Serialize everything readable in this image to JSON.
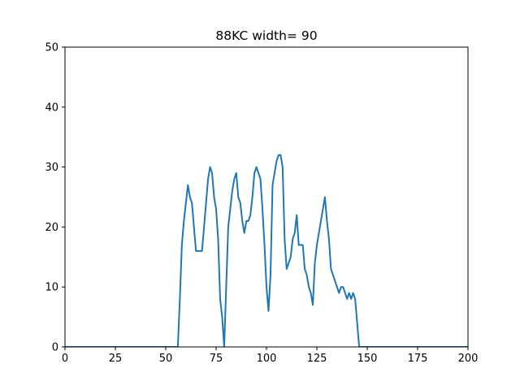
{
  "chart_data": {
    "type": "line",
    "title": "88KC width= 90",
    "xlabel": "",
    "ylabel": "",
    "xlim": [
      0,
      200
    ],
    "ylim": [
      0,
      50
    ],
    "xticks": [
      0,
      25,
      50,
      75,
      100,
      125,
      150,
      175,
      200
    ],
    "yticks": [
      0,
      10,
      20,
      30,
      40,
      50
    ],
    "grid": false,
    "legend": "none",
    "series": [
      {
        "color": "#1f77b4",
        "x": [
          0,
          56,
          57,
          58,
          59,
          60,
          61,
          62,
          63,
          64,
          65,
          66,
          67,
          68,
          69,
          70,
          71,
          72,
          73,
          74,
          75,
          76,
          77,
          78,
          79,
          80,
          81,
          82,
          83,
          84,
          85,
          86,
          87,
          88,
          89,
          90,
          91,
          92,
          93,
          94,
          95,
          96,
          97,
          98,
          99,
          100,
          101,
          102,
          103,
          104,
          105,
          106,
          107,
          108,
          109,
          110,
          111,
          112,
          113,
          114,
          115,
          116,
          117,
          118,
          119,
          120,
          121,
          122,
          123,
          124,
          125,
          126,
          127,
          128,
          129,
          130,
          131,
          132,
          133,
          134,
          135,
          136,
          137,
          138,
          139,
          140,
          141,
          142,
          143,
          144,
          145,
          146,
          200
        ],
        "y": [
          0,
          0,
          8,
          17,
          21,
          24,
          27,
          25,
          24,
          20,
          16,
          16,
          16,
          16,
          20,
          24,
          28,
          30,
          29,
          25,
          23,
          18,
          8,
          5,
          0,
          10,
          20,
          23,
          26,
          28,
          29,
          25,
          24,
          21,
          19,
          21,
          21,
          22,
          25,
          29,
          30,
          29,
          28,
          23,
          17,
          10,
          6,
          12,
          27,
          29,
          31,
          32,
          32,
          30,
          18,
          13,
          14,
          15,
          18,
          19,
          22,
          17,
          17,
          17,
          13,
          12,
          10,
          9,
          7,
          14,
          17,
          19,
          21,
          23,
          25,
          21,
          18,
          13,
          12,
          11,
          10,
          9,
          10,
          10,
          9,
          8,
          9,
          8,
          9,
          8,
          4,
          0,
          0
        ]
      }
    ]
  }
}
